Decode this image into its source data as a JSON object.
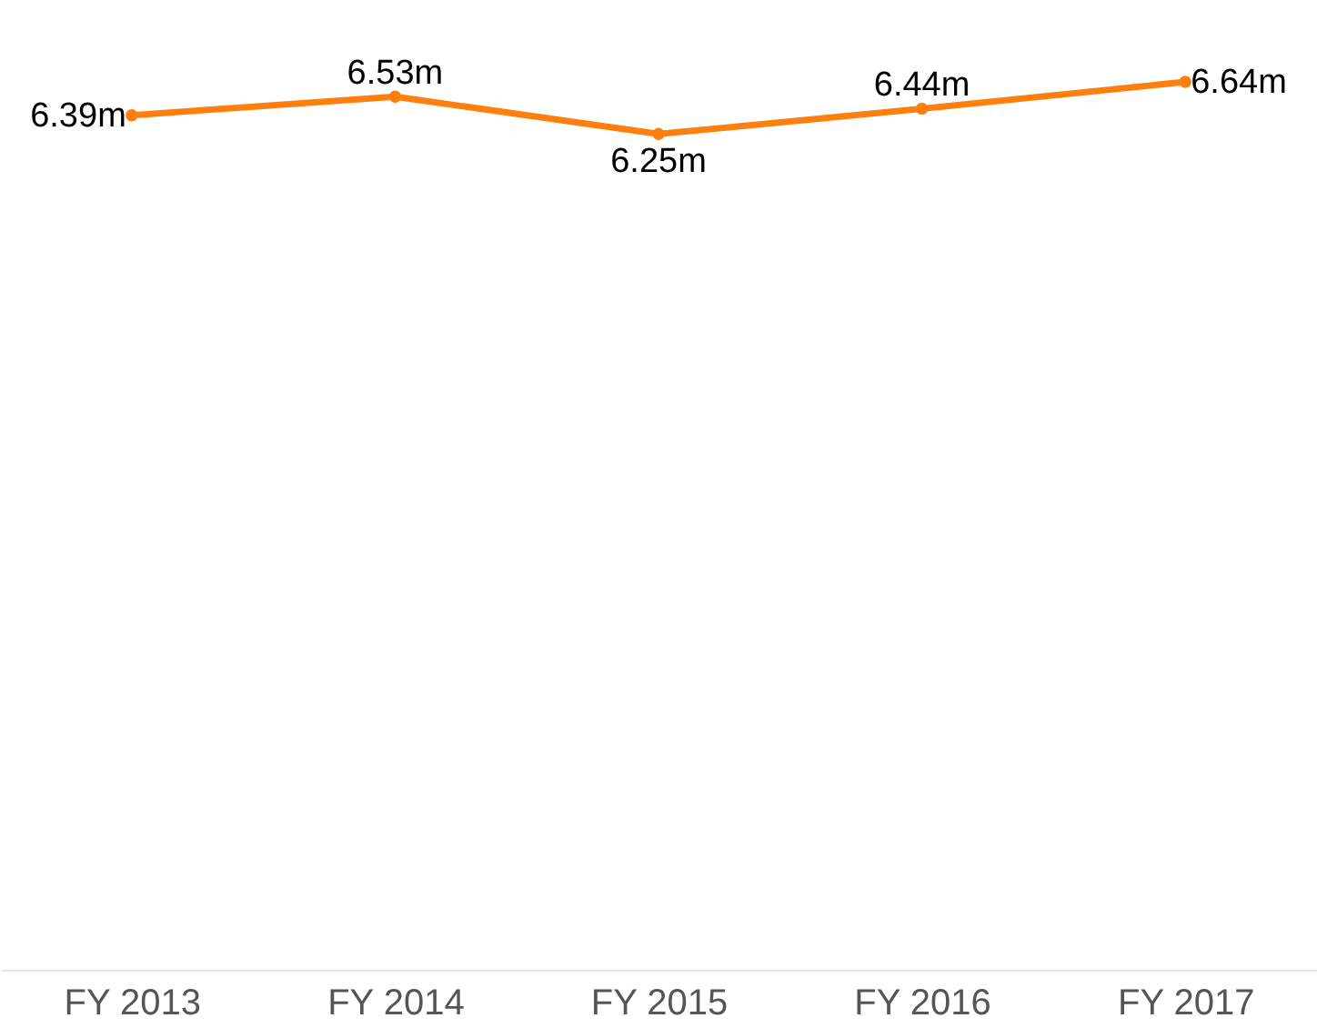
{
  "chart_data": {
    "type": "line",
    "categories": [
      "FY 2013",
      "FY 2014",
      "FY 2015",
      "FY 2016",
      "FY 2017"
    ],
    "series": [
      {
        "color": "#ff7f0e",
        "values": [
          6.39,
          6.53,
          6.25,
          6.44,
          6.64
        ],
        "value_labels": [
          "6.39m",
          "6.53m",
          "6.25m",
          "6.44m",
          "6.64m"
        ]
      }
    ],
    "marker": "circle",
    "line_style": "solid",
    "tick_labels": "x",
    "grid": false
  }
}
